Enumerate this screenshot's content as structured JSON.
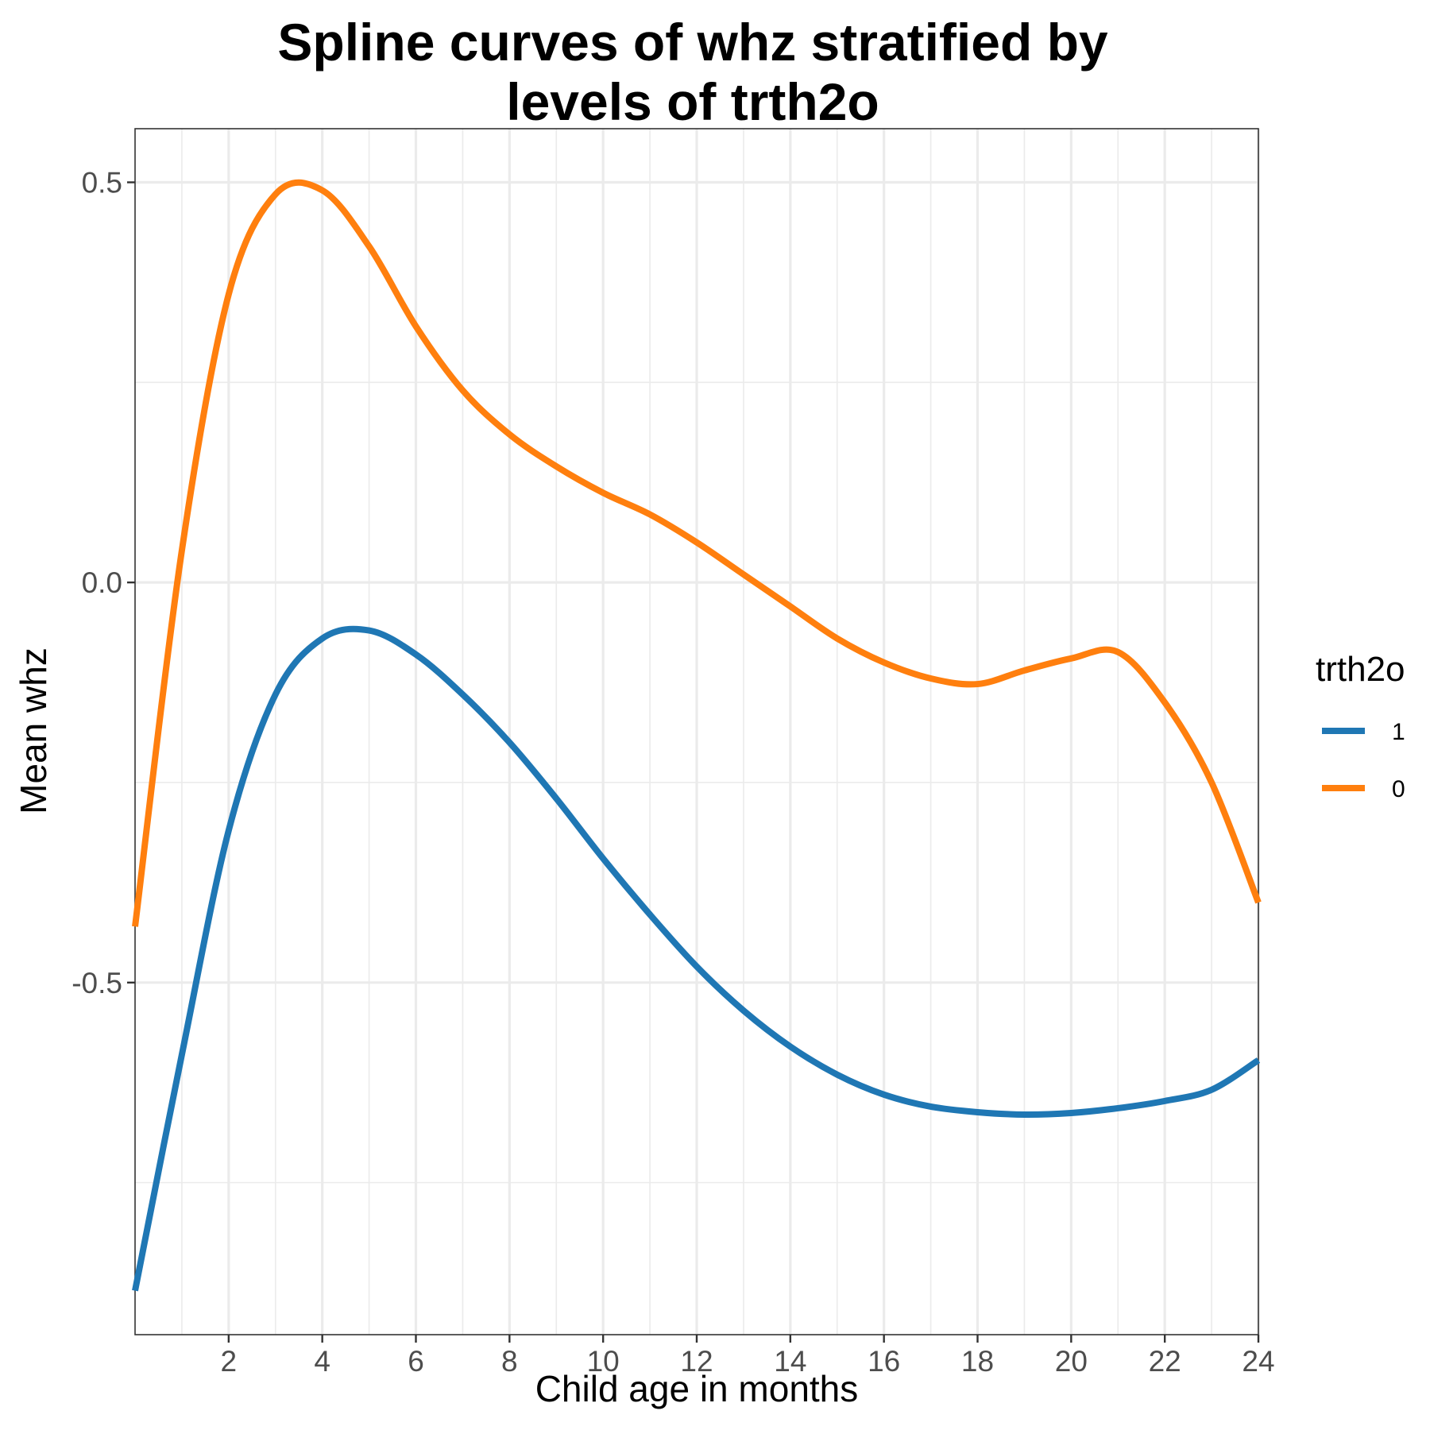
{
  "chart_data": {
    "type": "line",
    "title_lines": [
      "Spline curves of whz stratified by",
      "levels of trth2o"
    ],
    "xlabel": "Child age in months",
    "ylabel": "Mean whz",
    "xlim": [
      0,
      24
    ],
    "ylim": [
      -0.94,
      0.567
    ],
    "x_ticks": [
      2,
      4,
      6,
      8,
      10,
      12,
      14,
      16,
      18,
      20,
      22,
      24
    ],
    "x_tick_labels": [
      "2",
      "4",
      "6",
      "8",
      "10",
      "12",
      "14",
      "16",
      "18",
      "20",
      "22",
      "24"
    ],
    "x_minor_ticks": [
      1,
      3,
      5,
      7,
      9,
      11,
      13,
      15,
      17,
      19,
      21,
      23
    ],
    "y_ticks": [
      0.5,
      0.0,
      -0.5
    ],
    "y_tick_labels": [
      "0.5",
      "0.0",
      "-0.5"
    ],
    "y_minor_ticks": [
      0.25,
      -0.25,
      -0.75
    ],
    "grid": true,
    "legend": {
      "title": "trth2o",
      "position": "right"
    },
    "series": [
      {
        "name": "1",
        "color": "#1f77b4",
        "x": [
          0,
          1,
          2,
          3,
          4,
          5,
          6,
          7,
          8,
          9,
          10,
          11,
          12,
          13,
          14,
          15,
          16,
          17,
          18,
          19,
          20,
          21,
          22,
          23,
          24
        ],
        "y": [
          -0.885,
          -0.59,
          -0.31,
          -0.14,
          -0.07,
          -0.06,
          -0.09,
          -0.14,
          -0.2,
          -0.27,
          -0.345,
          -0.415,
          -0.48,
          -0.535,
          -0.58,
          -0.615,
          -0.64,
          -0.655,
          -0.662,
          -0.665,
          -0.663,
          -0.657,
          -0.648,
          -0.634,
          -0.597
        ]
      },
      {
        "name": "0",
        "color": "#ff7f0e",
        "x": [
          0,
          1,
          2,
          3,
          4,
          5,
          6,
          7,
          8,
          9,
          10,
          11,
          12,
          13,
          14,
          15,
          16,
          17,
          18,
          19,
          20,
          21,
          22,
          23,
          24
        ],
        "y": [
          -0.43,
          0.04,
          0.36,
          0.485,
          0.49,
          0.42,
          0.32,
          0.24,
          0.185,
          0.145,
          0.112,
          0.085,
          0.05,
          0.01,
          -0.03,
          -0.07,
          -0.1,
          -0.12,
          -0.127,
          -0.11,
          -0.095,
          -0.087,
          -0.15,
          -0.25,
          -0.4
        ]
      }
    ]
  }
}
